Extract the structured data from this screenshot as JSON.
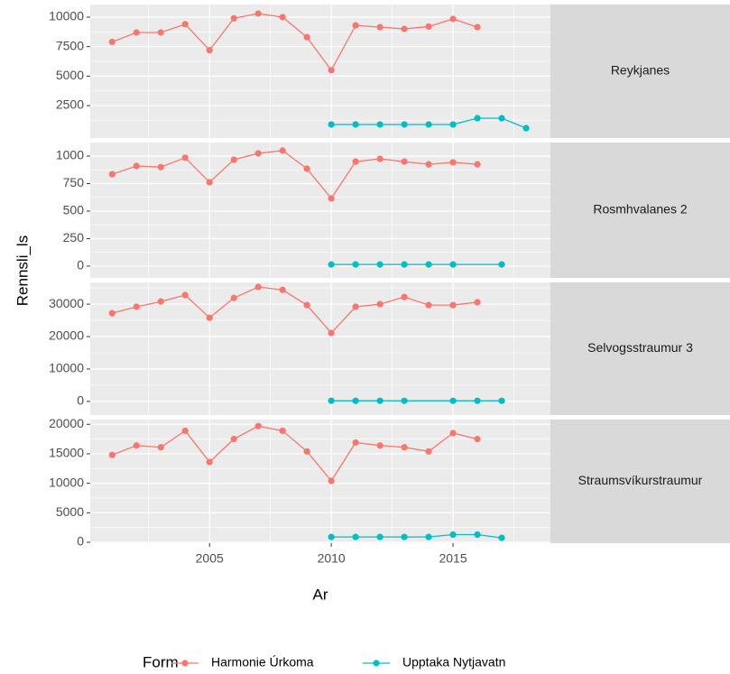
{
  "x_label": "Ar",
  "y_label": "Rennsli_ls",
  "legend": {
    "title": "Form",
    "series": [
      {
        "name": "Harmonie Úrkoma",
        "color": "#F8766D"
      },
      {
        "name": "Upptaka Nytjavatn",
        "color": "#00BFC4"
      }
    ]
  },
  "xlim": [
    2000.1,
    2019
  ],
  "xticks": [
    2005,
    2010,
    2015
  ],
  "chart_data": [
    {
      "type": "line",
      "title": "Reykjanes",
      "ylim": [
        -250,
        11070
      ],
      "yticks": [
        2500,
        5000,
        7500,
        10000
      ],
      "series": [
        {
          "x": [
            2001,
            2002,
            2003,
            2004,
            2005,
            2006,
            2007,
            2008,
            2009,
            2010,
            2011,
            2012,
            2013,
            2014,
            2015,
            2016
          ],
          "values": [
            7900,
            8700,
            8700,
            9400,
            7200,
            9900,
            10300,
            10000,
            8300,
            5500,
            9300,
            9150,
            9000,
            9200,
            9850,
            9150
          ]
        },
        {
          "x": [
            2010,
            2011,
            2012,
            2013,
            2014,
            2015,
            2016,
            2017,
            2018
          ],
          "values": [
            900,
            900,
            900,
            900,
            900,
            900,
            1430,
            1430,
            590
          ]
        }
      ]
    },
    {
      "type": "line",
      "title": "Rosmhvalanes 2",
      "ylim": [
        -107,
        1123
      ],
      "yticks": [
        0,
        250,
        500,
        750,
        1000
      ],
      "series": [
        {
          "x": [
            2001,
            2002,
            2003,
            2004,
            2005,
            2006,
            2007,
            2008,
            2009,
            2010,
            2011,
            2012,
            2013,
            2014,
            2015,
            2016
          ],
          "values": [
            835,
            910,
            900,
            985,
            762,
            967,
            1025,
            1050,
            885,
            615,
            950,
            975,
            950,
            925,
            943,
            925
          ]
        },
        {
          "x": [
            2010,
            2011,
            2012,
            2013,
            2014,
            2015,
            2017
          ],
          "values": [
            15,
            15,
            15,
            15,
            15,
            15,
            15
          ]
        }
      ]
    },
    {
      "type": "line",
      "title": "Selvogsstraumur 3",
      "ylim": [
        -4200,
        36700
      ],
      "yticks": [
        0,
        10000,
        20000,
        30000
      ],
      "series": [
        {
          "x": [
            2001,
            2002,
            2003,
            2004,
            2005,
            2006,
            2007,
            2008,
            2009,
            2010,
            2011,
            2012,
            2013,
            2014,
            2015,
            2016
          ],
          "values": [
            27200,
            29200,
            30800,
            32800,
            25800,
            31900,
            35300,
            34400,
            29700,
            21100,
            29200,
            30000,
            32200,
            29700,
            29700,
            30600
          ]
        },
        {
          "x": [
            2010,
            2011,
            2012,
            2013,
            2015,
            2016,
            2017
          ],
          "values": [
            200,
            200,
            200,
            200,
            200,
            200,
            200
          ]
        }
      ]
    },
    {
      "type": "line",
      "title": "Straumsvíkurstraumur",
      "ylim": [
        -150,
        20800
      ],
      "yticks": [
        0,
        5000,
        10000,
        15000,
        20000
      ],
      "series": [
        {
          "x": [
            2001,
            2002,
            2003,
            2004,
            2005,
            2006,
            2007,
            2008,
            2009,
            2010,
            2011,
            2012,
            2013,
            2014,
            2015,
            2016
          ],
          "values": [
            14800,
            16400,
            16100,
            18900,
            13600,
            17500,
            19700,
            18900,
            15400,
            10400,
            16900,
            16400,
            16100,
            15400,
            18500,
            17500
          ]
        },
        {
          "x": [
            2010,
            2011,
            2012,
            2013,
            2014,
            2015,
            2016,
            2017
          ],
          "values": [
            900,
            900,
            900,
            900,
            900,
            1300,
            1300,
            750
          ]
        }
      ]
    }
  ]
}
